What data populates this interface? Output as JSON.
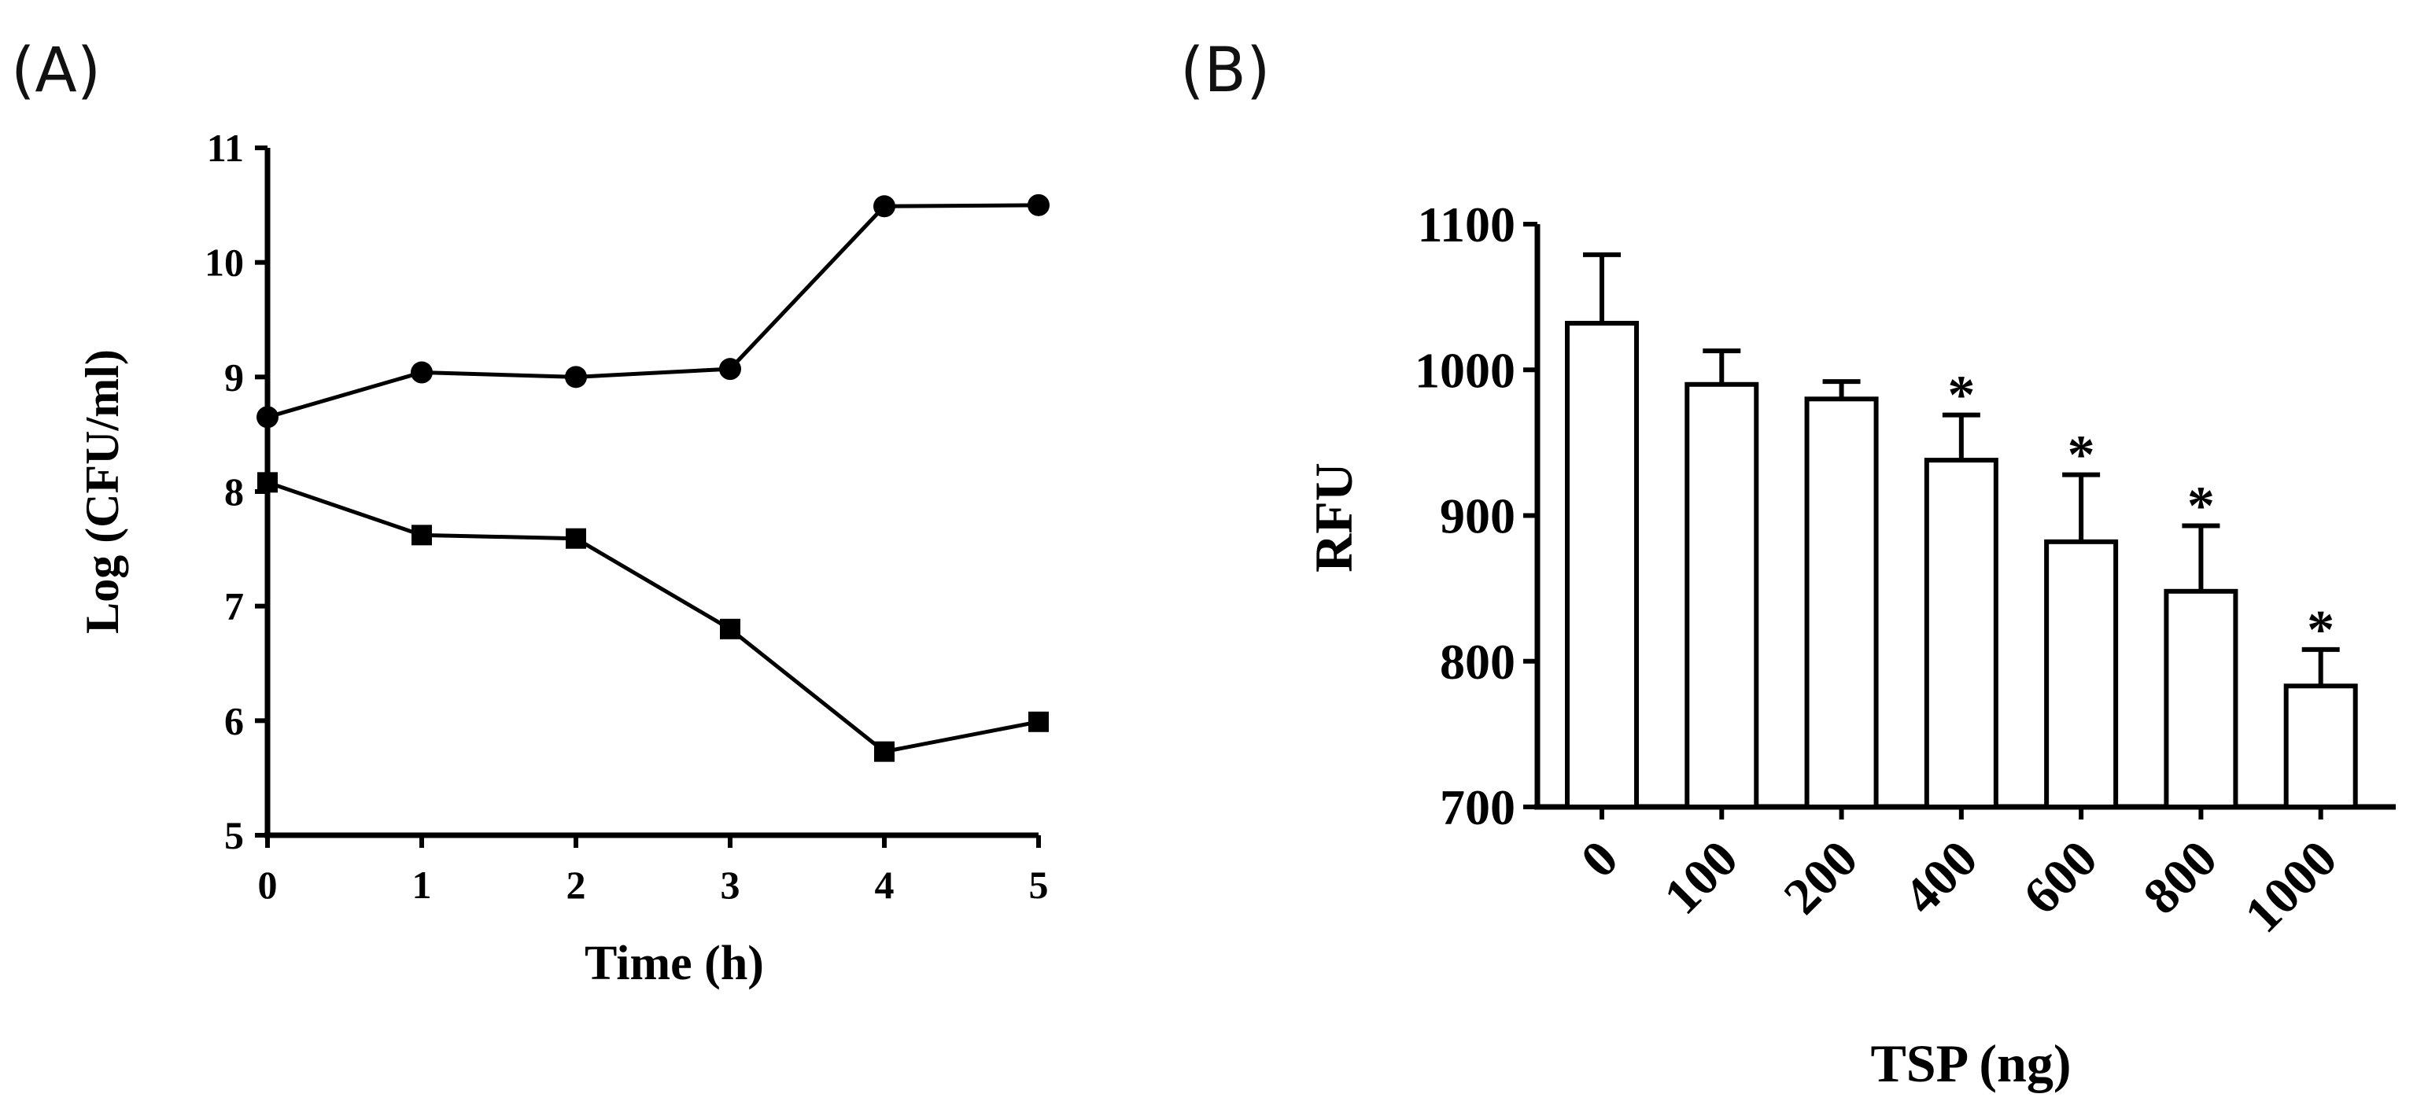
{
  "chart_data": [
    {
      "panel_label": "(A)",
      "type": "line",
      "title": "",
      "xlabel": "Time (h)",
      "ylabel": "Log (CFU/ml)",
      "x": [
        0,
        1,
        2,
        3,
        4,
        5
      ],
      "xlim": [
        0,
        5
      ],
      "ylim": [
        5,
        11
      ],
      "xticks": [
        "0",
        "1",
        "2",
        "3",
        "4",
        "5"
      ],
      "yticks": [
        "5",
        "6",
        "7",
        "8",
        "9",
        "10",
        "11"
      ],
      "grid": false,
      "series": [
        {
          "marker": "circle",
          "values": [
            8.65,
            9.04,
            9.0,
            9.07,
            10.49,
            10.5
          ]
        },
        {
          "marker": "square",
          "values": [
            8.08,
            7.62,
            7.59,
            6.8,
            5.73,
            5.99
          ]
        }
      ]
    },
    {
      "panel_label": "(B)",
      "type": "bar",
      "title": "",
      "xlabel": "TSP (ng)",
      "ylabel": "RFU",
      "categories": [
        "0",
        "100",
        "200",
        "400",
        "600",
        "800",
        "1000"
      ],
      "values": [
        1032,
        990,
        980,
        938,
        882,
        848,
        783
      ],
      "errors": [
        47,
        23,
        12,
        31,
        46,
        45,
        25
      ],
      "significance": [
        "",
        "",
        "",
        "*",
        "*",
        "*",
        "*"
      ],
      "ylim": [
        700,
        1100
      ],
      "yticks": [
        "700",
        "800",
        "900",
        "1000",
        "1100"
      ],
      "grid": false
    }
  ]
}
